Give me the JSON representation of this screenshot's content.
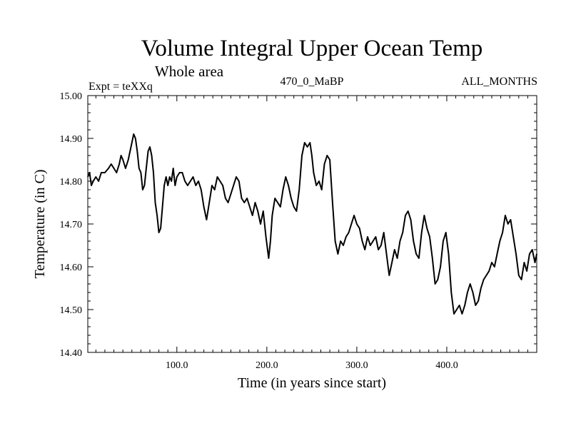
{
  "chart_data": {
    "type": "line",
    "title": "Volume Integral Upper Ocean Temp",
    "subtitle": "Whole area",
    "expt_label": "Expt = teXXq",
    "run_label": "470_0_MaBP",
    "months_label": "ALL_MONTHS",
    "xlabel": "Time (in years since start)",
    "ylabel": "Temperature (in C)",
    "xlim": [
      1,
      500
    ],
    "ylim": [
      14.4,
      15.0
    ],
    "x_ticks": [
      100,
      200,
      300,
      400
    ],
    "x_tick_labels": [
      "100.0",
      "200.0",
      "300.0",
      "400.0"
    ],
    "y_ticks": [
      14.4,
      14.5,
      14.6,
      14.7,
      14.8,
      14.9,
      15.0
    ],
    "y_tick_labels": [
      "14.40",
      "14.50",
      "14.60",
      "14.70",
      "14.80",
      "14.90",
      "15.00"
    ],
    "grid": false,
    "series": [
      {
        "name": "teXXq",
        "color": "#000000",
        "x": [
          1,
          3,
          5,
          7,
          10,
          13,
          16,
          20,
          24,
          27,
          30,
          33,
          36,
          38,
          40,
          43,
          46,
          49,
          52,
          54,
          56,
          58,
          60,
          62,
          64,
          66,
          68,
          70,
          72,
          74,
          76,
          78,
          80,
          82,
          84,
          86,
          88,
          90,
          92,
          94,
          96,
          98,
          100,
          103,
          106,
          109,
          112,
          115,
          118,
          121,
          124,
          127,
          130,
          133,
          136,
          139,
          142,
          145,
          148,
          151,
          154,
          157,
          160,
          163,
          166,
          169,
          172,
          175,
          178,
          181,
          184,
          187,
          190,
          193,
          196,
          199,
          202,
          204,
          206,
          209,
          212,
          215,
          218,
          221,
          224,
          227,
          230,
          233,
          236,
          239,
          242,
          245,
          248,
          250,
          252,
          255,
          258,
          261,
          264,
          267,
          270,
          273,
          276,
          279,
          282,
          285,
          288,
          291,
          294,
          297,
          300,
          303,
          306,
          309,
          312,
          315,
          318,
          321,
          324,
          327,
          330,
          333,
          336,
          339,
          342,
          345,
          348,
          351,
          354,
          357,
          360,
          363,
          366,
          369,
          372,
          375,
          378,
          381,
          384,
          387,
          390,
          393,
          396,
          399,
          402,
          405,
          408,
          411,
          414,
          417,
          420,
          423,
          426,
          429,
          432,
          435,
          438,
          441,
          444,
          447,
          450,
          453,
          456,
          459,
          462,
          465,
          468,
          471,
          474,
          477,
          480,
          483,
          486,
          489,
          492,
          495,
          498,
          500
        ],
        "y": [
          14.81,
          14.82,
          14.79,
          14.8,
          14.81,
          14.8,
          14.82,
          14.82,
          14.83,
          14.84,
          14.83,
          14.82,
          14.84,
          14.86,
          14.85,
          14.83,
          14.85,
          14.88,
          14.91,
          14.9,
          14.87,
          14.83,
          14.82,
          14.78,
          14.79,
          14.83,
          14.87,
          14.88,
          14.86,
          14.82,
          14.75,
          14.72,
          14.68,
          14.69,
          14.74,
          14.79,
          14.81,
          14.79,
          14.81,
          14.8,
          14.83,
          14.79,
          14.81,
          14.82,
          14.82,
          14.8,
          14.79,
          14.8,
          14.81,
          14.79,
          14.8,
          14.78,
          14.74,
          14.71,
          14.75,
          14.79,
          14.78,
          14.81,
          14.8,
          14.79,
          14.76,
          14.75,
          14.77,
          14.79,
          14.81,
          14.8,
          14.76,
          14.75,
          14.76,
          14.74,
          14.72,
          14.75,
          14.73,
          14.7,
          14.73,
          14.67,
          14.62,
          14.66,
          14.72,
          14.76,
          14.75,
          14.74,
          14.78,
          14.81,
          14.79,
          14.76,
          14.74,
          14.73,
          14.78,
          14.86,
          14.89,
          14.88,
          14.89,
          14.86,
          14.82,
          14.79,
          14.8,
          14.78,
          14.84,
          14.86,
          14.85,
          14.75,
          14.66,
          14.63,
          14.66,
          14.65,
          14.67,
          14.68,
          14.7,
          14.72,
          14.7,
          14.69,
          14.66,
          14.64,
          14.67,
          14.65,
          14.66,
          14.67,
          14.64,
          14.65,
          14.68,
          14.63,
          14.58,
          14.61,
          14.64,
          14.62,
          14.66,
          14.68,
          14.72,
          14.73,
          14.71,
          14.66,
          14.63,
          14.62,
          14.68,
          14.72,
          14.69,
          14.67,
          14.62,
          14.56,
          14.57,
          14.6,
          14.66,
          14.68,
          14.63,
          14.54,
          14.49,
          14.5,
          14.51,
          14.49,
          14.51,
          14.54,
          14.56,
          14.54,
          14.51,
          14.52,
          14.55,
          14.57,
          14.58,
          14.59,
          14.61,
          14.6,
          14.63,
          14.66,
          14.68,
          14.72,
          14.7,
          14.71,
          14.67,
          14.63,
          14.58,
          14.57,
          14.61,
          14.59,
          14.63,
          14.64,
          14.61,
          14.63
        ]
      }
    ]
  }
}
